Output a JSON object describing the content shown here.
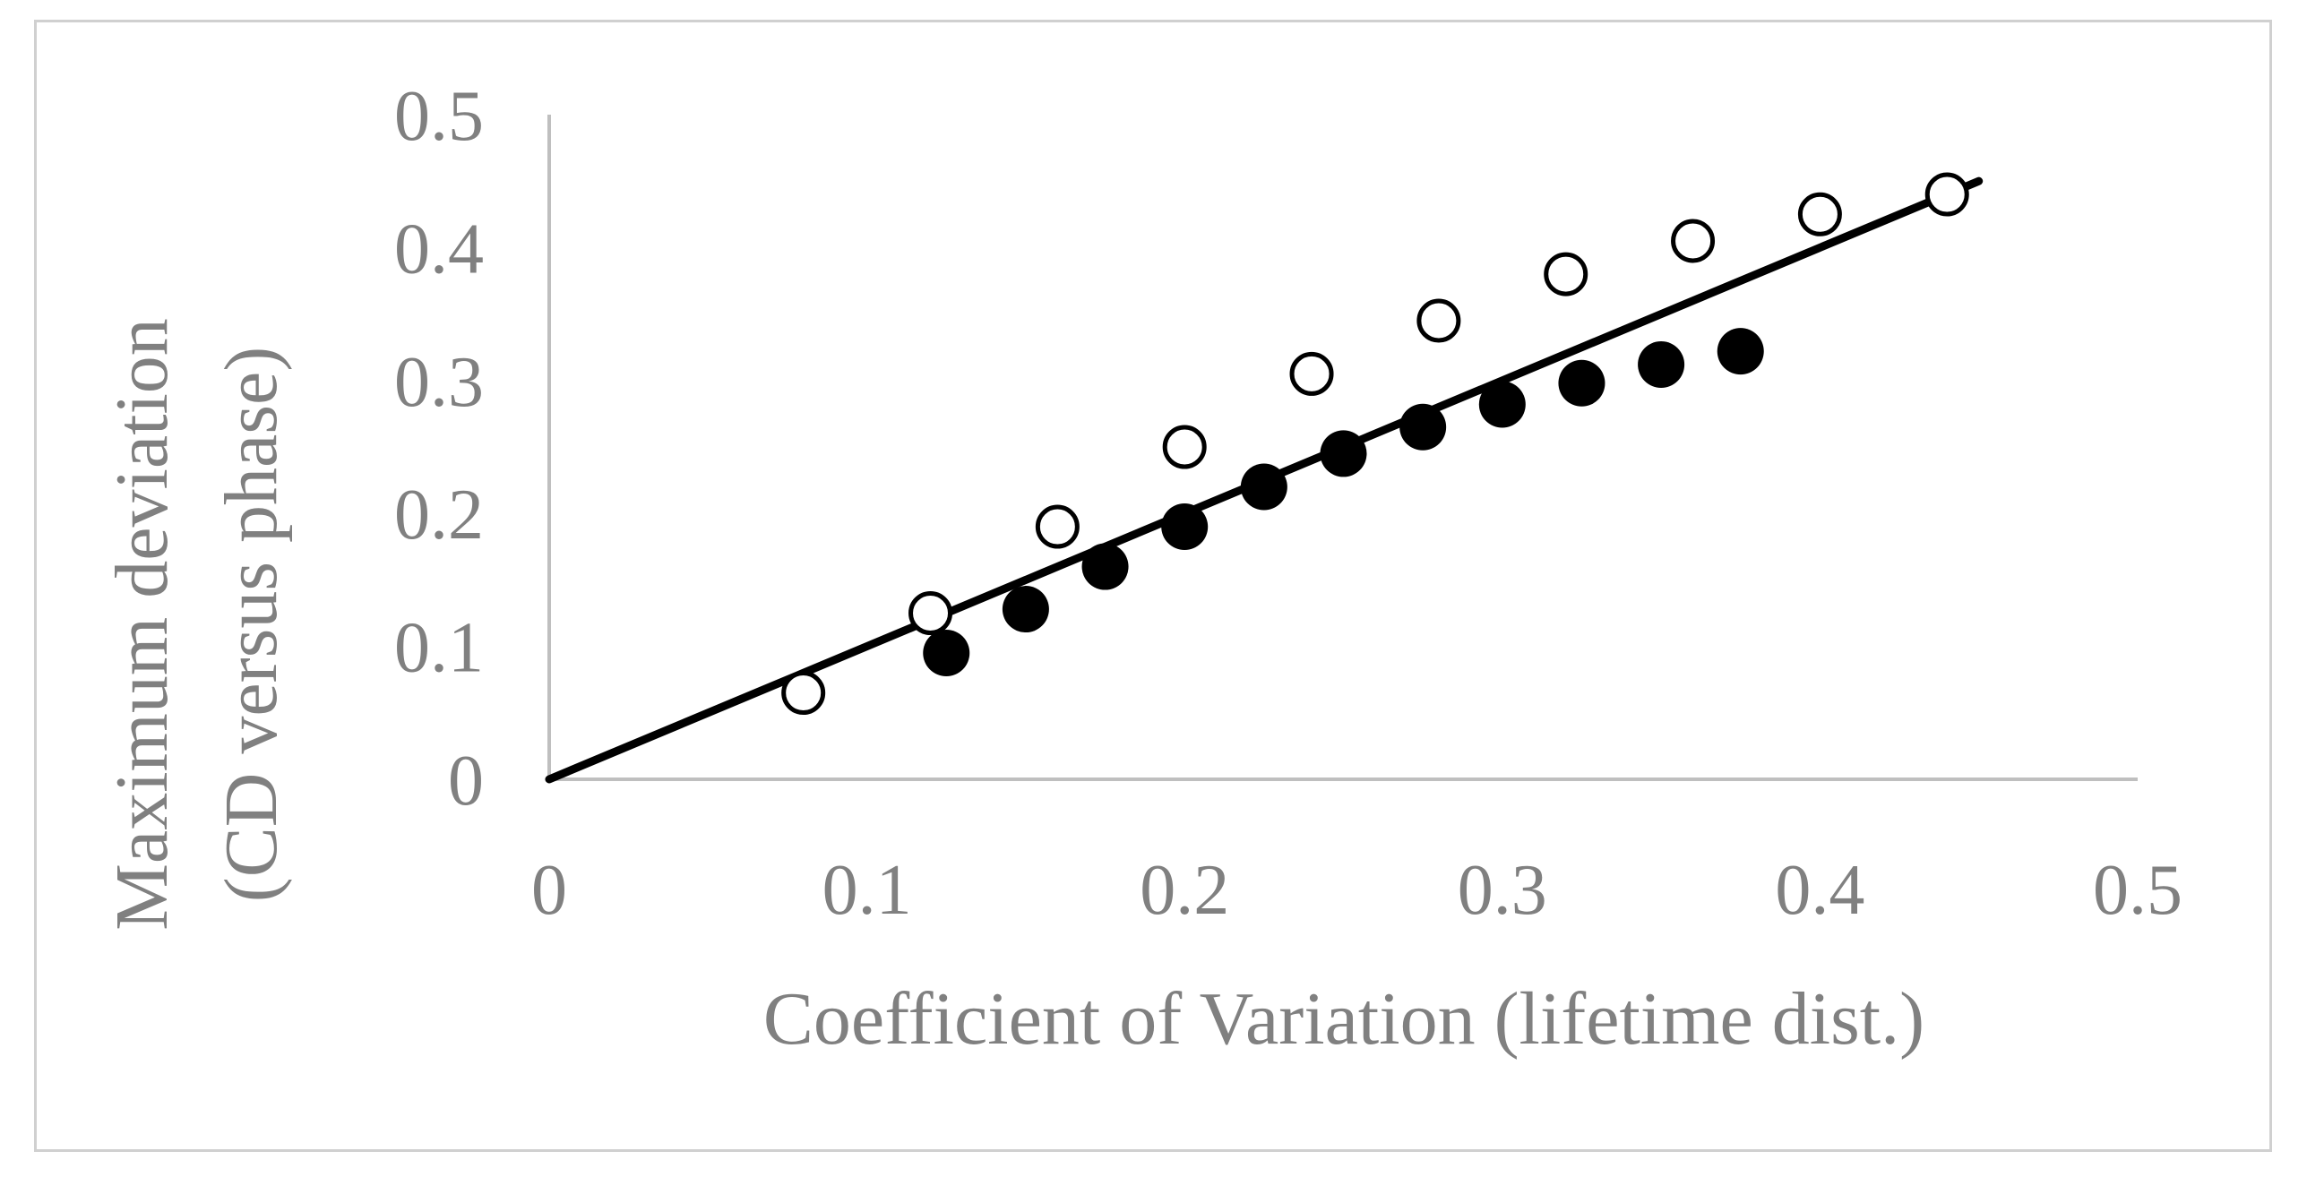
{
  "chart_data": {
    "type": "scatter",
    "title": "",
    "xlabel": "Coefficient of Variation (lifetime dist.)",
    "ylabel_lines": [
      "Maximum deviation",
      "(CD versus phase)"
    ],
    "xlim": [
      0,
      0.5
    ],
    "ylim": [
      0,
      0.5
    ],
    "x_ticks": [
      0,
      0.1,
      0.2,
      0.3,
      0.4,
      0.5
    ],
    "x_tick_labels": [
      "0",
      "0.1",
      "0.2",
      "0.3",
      "0.4",
      "0.5"
    ],
    "y_ticks": [
      0,
      0.1,
      0.2,
      0.3,
      0.4,
      0.5
    ],
    "y_tick_labels": [
      "0",
      "0.1",
      "0.2",
      "0.3",
      "0.4",
      "0.5"
    ],
    "grid": false,
    "series": [
      {
        "name": "open circles",
        "marker": "open-circle",
        "color": "#000000",
        "x": [
          0.08,
          0.12,
          0.16,
          0.2,
          0.24,
          0.28,
          0.32,
          0.36,
          0.4,
          0.44
        ],
        "y": [
          0.065,
          0.125,
          0.19,
          0.25,
          0.305,
          0.345,
          0.38,
          0.405,
          0.425,
          0.44
        ]
      },
      {
        "name": "filled circles",
        "marker": "filled-circle",
        "color": "#000000",
        "x": [
          0.125,
          0.15,
          0.175,
          0.2,
          0.225,
          0.25,
          0.275,
          0.3,
          0.325,
          0.35,
          0.375
        ],
        "y": [
          0.095,
          0.128,
          0.16,
          0.19,
          0.22,
          0.245,
          0.265,
          0.282,
          0.298,
          0.312,
          0.322
        ]
      }
    ],
    "lines": [
      {
        "name": "reference line",
        "color": "#000000",
        "x": [
          0,
          0.45
        ],
        "y": [
          0,
          0.45
        ]
      }
    ]
  }
}
